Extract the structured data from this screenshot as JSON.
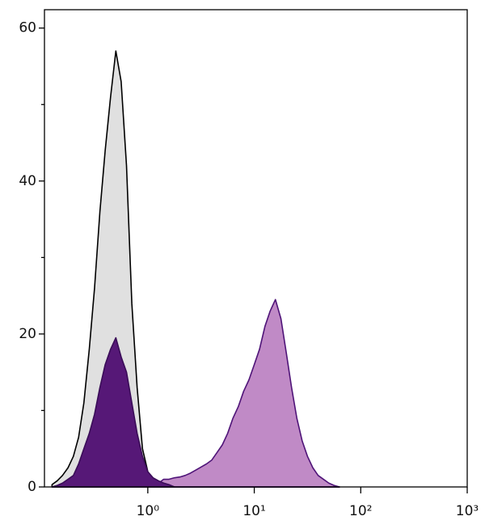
{
  "chart_data": {
    "type": "area",
    "x_scale": "log",
    "x": [
      0.126,
      0.141,
      0.158,
      0.178,
      0.2,
      0.224,
      0.251,
      0.282,
      0.316,
      0.355,
      0.398,
      0.447,
      0.501,
      0.562,
      0.631,
      0.708,
      0.794,
      0.891,
      1,
      1.12,
      1.26,
      1.41,
      1.58,
      1.78,
      2.0,
      2.24,
      2.51,
      2.82,
      3.16,
      3.55,
      3.98,
      4.47,
      5.01,
      5.62,
      6.31,
      7.08,
      7.94,
      8.91,
      10,
      11.2,
      12.6,
      14.1,
      15.8,
      17.8,
      20.0,
      22.4,
      25.1,
      28.2,
      31.6,
      35.5,
      39.8,
      44.7,
      50.1,
      56.2,
      63.1
    ],
    "series": [
      {
        "color": "#e0e0e0",
        "line_color": "#000000",
        "values": [
          0.3,
          0.8,
          1.5,
          2.5,
          4,
          6.5,
          11,
          18,
          26,
          36,
          44,
          51,
          57,
          53,
          42,
          24,
          13,
          5,
          2,
          0.8,
          0.3,
          0,
          0,
          0,
          0,
          0,
          0,
          0,
          0,
          0,
          0,
          0,
          0,
          0,
          0,
          0,
          0,
          0,
          0,
          0,
          0,
          0,
          0,
          0,
          0,
          0,
          0,
          0,
          0,
          0,
          0,
          0,
          0,
          0,
          0
        ]
      },
      {
        "color": "#c08ac6",
        "line_color": "#4f1478",
        "values": [
          0,
          0,
          0,
          0,
          0,
          0,
          0,
          0,
          0,
          0,
          0,
          0,
          0,
          0,
          0,
          0,
          0,
          0,
          0,
          0,
          0.5,
          1,
          1,
          1.2,
          1.3,
          1.5,
          1.8,
          2.2,
          2.6,
          3,
          3.5,
          4.5,
          5.5,
          7,
          9,
          10.5,
          12.5,
          14,
          16,
          18,
          21,
          23,
          24.5,
          22,
          17.5,
          13,
          9,
          6,
          4,
          2.5,
          1.5,
          1,
          0.5,
          0.2,
          0
        ]
      },
      {
        "color": "#561877",
        "line_color": "#3a0c58",
        "values": [
          0,
          0.2,
          0.5,
          1,
          1.5,
          3,
          5,
          7,
          9.5,
          13,
          16,
          18,
          19.5,
          17,
          15,
          11,
          7,
          4,
          2,
          1.2,
          0.8,
          0.5,
          0.3,
          0,
          0,
          0,
          0,
          0,
          0,
          0,
          0,
          0,
          0,
          0,
          0,
          0,
          0,
          0,
          0,
          0,
          0,
          0,
          0,
          0,
          0,
          0,
          0,
          0,
          0,
          0,
          0,
          0,
          0,
          0,
          0
        ]
      }
    ],
    "xlim": [
      0.107,
      1000
    ],
    "xticks": [
      {
        "value": 1,
        "label": "10⁰"
      },
      {
        "value": 10,
        "label": "10¹"
      },
      {
        "value": 100,
        "label": "10²"
      },
      {
        "value": 1000,
        "label": "10³"
      }
    ],
    "ylim": [
      0,
      62.4
    ],
    "yticks": [
      0,
      20,
      40,
      60
    ],
    "y_minor_ticks": [
      10,
      30,
      50
    ]
  }
}
